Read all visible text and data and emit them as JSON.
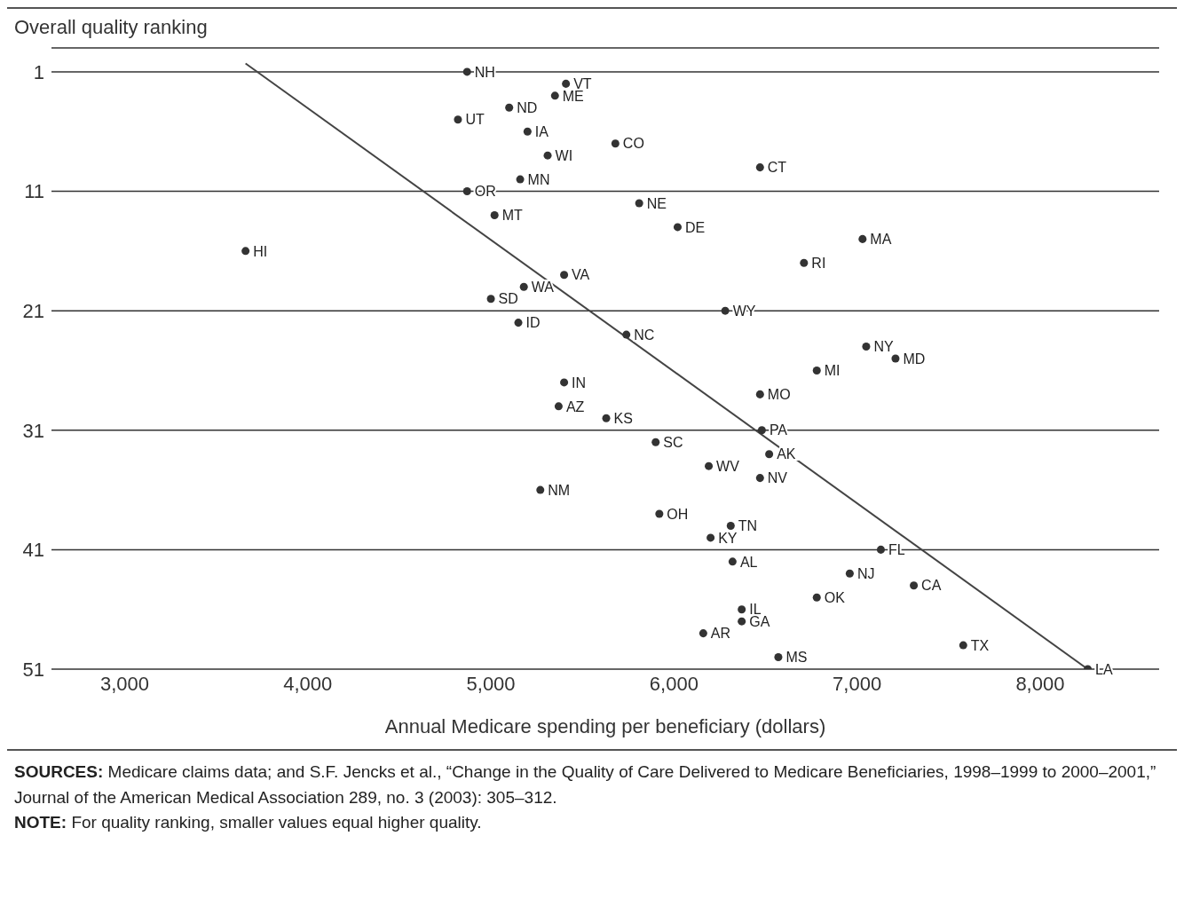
{
  "chart_data": {
    "type": "scatter",
    "ylabel": "Overall quality ranking",
    "xlabel": "Annual Medicare spending per beneficiary (dollars)",
    "xlim": [
      2600,
      8650
    ],
    "xticks": [
      {
        "value": 3000,
        "label": "3,000"
      },
      {
        "value": 4000,
        "label": "4,000"
      },
      {
        "value": 5000,
        "label": "5,000"
      },
      {
        "value": 6000,
        "label": "6,000"
      },
      {
        "value": 7000,
        "label": "7,000"
      },
      {
        "value": 8000,
        "label": "8,000"
      }
    ],
    "ylim": [
      51,
      -1
    ],
    "yticks": [
      1,
      11,
      21,
      31,
      41,
      51
    ],
    "grid": "y",
    "marker": "circle",
    "series": [
      {
        "color": "#333333",
        "x": [
          4870,
          5410,
          5350,
          5100,
          4820,
          5200,
          5680,
          5310,
          6470,
          5160,
          4870,
          5810,
          5020,
          6020,
          7030,
          3660,
          6710,
          5400,
          5180,
          5000,
          6280,
          5150,
          5740,
          7050,
          7210,
          6780,
          5400,
          6470,
          5370,
          5630,
          6480,
          5900,
          6520,
          6190,
          6470,
          5270,
          5920,
          6310,
          6200,
          7130,
          6320,
          6960,
          7310,
          6780,
          6370,
          6370,
          6160,
          7580,
          6570,
          8260
        ],
        "values": [
          1,
          2,
          3,
          4,
          5,
          6,
          7,
          8,
          9,
          10,
          11,
          12,
          13,
          14,
          15,
          16,
          17,
          18,
          19,
          20,
          21,
          22,
          23,
          24,
          25,
          26,
          27,
          28,
          29,
          30,
          31,
          32,
          33,
          34,
          35,
          36,
          38,
          39,
          40,
          41,
          42,
          43,
          44,
          45,
          46,
          47,
          48,
          49,
          50,
          51
        ],
        "value_labels": [
          "NH",
          "VT",
          "ME",
          "ND",
          "UT",
          "IA",
          "CO",
          "WI",
          "CT",
          "MN",
          "OR",
          "NE",
          "MT",
          "DE",
          "MA",
          "HI",
          "RI",
          "VA",
          "WA",
          "SD",
          "WY",
          "ID",
          "NC",
          "NY",
          "MD",
          "MI",
          "IN",
          "MO",
          "AZ",
          "KS",
          "PA",
          "SC",
          "AK",
          "WV",
          "NV",
          "NM",
          "OH",
          "TN",
          "KY",
          "FL",
          "AL",
          "NJ",
          "CA",
          "OK",
          "IL",
          "GA",
          "AR",
          "TX",
          "MS",
          "LA"
        ]
      },
      {
        "type": "line",
        "marker": "none",
        "color": "#444444",
        "x": [
          3660,
          8260
        ],
        "values": [
          0.3,
          51
        ]
      }
    ],
    "annotations": [
      "SOURCES: Medicare claims data; and S.F. Jencks et al., “Change in the Quality of Care Delivered to Medicare Beneficiaries, 1998–1999 to 2000–2001,” Journal of the American Medical Association 289, no. 3 (2003): 305–312.",
      "NOTE: For quality ranking, smaller values equal higher quality."
    ]
  }
}
